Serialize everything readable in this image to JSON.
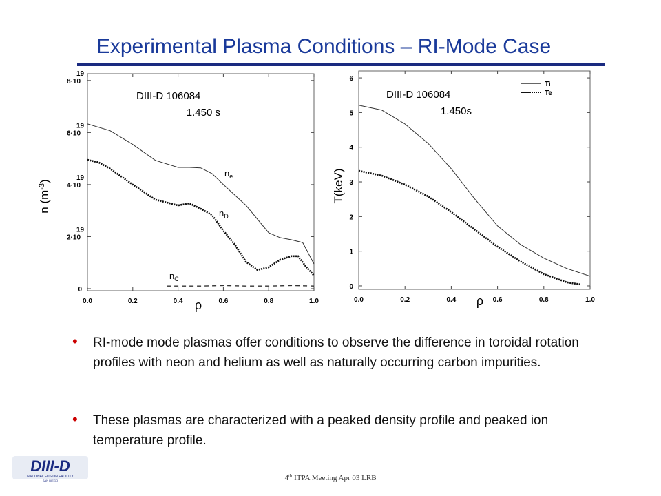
{
  "title": "Experimental Plasma Conditions – RI-Mode Case",
  "chart_data": [
    {
      "type": "line",
      "xlabel": "ρ",
      "ylabel": {
        "text": "n (m",
        "sup": "-3",
        "post": ")"
      },
      "xlim": [
        0,
        1
      ],
      "xticks": [
        {
          "value": 0,
          "label": "0.0"
        },
        0.2,
        0.4,
        0.6,
        0.8,
        {
          "value": 1,
          "label": "1.0"
        }
      ],
      "ylim": [
        -8e+17,
        8.26e+19
      ],
      "yticks": [
        0,
        {
          "value": 2e+19,
          "label": "2·10",
          "exponent": "19"
        },
        {
          "value": 4e+19,
          "label": "4·10",
          "exponent": "19"
        },
        {
          "value": 6e+19,
          "label": "6·10",
          "exponent": "19"
        },
        {
          "value": 8e+19,
          "label": "8·10",
          "exponent": "19"
        }
      ],
      "annotations": [
        {
          "text": "DIII-D  106084"
        },
        {
          "text": "1.450 s"
        },
        {
          "text": "n",
          "sub": "e"
        },
        {
          "text": "n",
          "sub": "D"
        },
        {
          "text": "n",
          "sub": "C"
        }
      ],
      "series": [
        {
          "color": "#333333",
          "style": "solid",
          "x": [
            0,
            0.1,
            0.2,
            0.3,
            0.4,
            0.45,
            0.5,
            0.55,
            0.6,
            0.7,
            0.8,
            0.85,
            0.9,
            0.95,
            1.0
          ],
          "values": [
            6.33e+19,
            6.07e+19,
            5.54e+19,
            4.93e+19,
            4.66e+19,
            4.66e+19,
            4.64e+19,
            4.42e+19,
            4e+19,
            3.2e+19,
            2.15e+19,
            1.96e+19,
            1.88e+19,
            1.77e+19,
            9.5e+18
          ]
        },
        {
          "color": "#111111",
          "style": "dotted",
          "x": [
            0,
            0.05,
            0.1,
            0.2,
            0.3,
            0.4,
            0.45,
            0.5,
            0.55,
            0.6,
            0.65,
            0.7,
            0.75,
            0.8,
            0.85,
            0.9,
            0.93,
            0.96,
            1.0
          ],
          "values": [
            4.95e+19,
            4.85e+19,
            4.61e+19,
            4e+19,
            3.42e+19,
            3.2e+19,
            3.28e+19,
            3.07e+19,
            2.83e+19,
            2.23e+19,
            1.7e+19,
            1.03e+19,
            7.2e+18,
            8.2e+18,
            1.11e+19,
            1.25e+19,
            1.25e+19,
            9e+18,
            5e+18
          ]
        },
        {
          "color": "#333333",
          "style": "dashed",
          "x": [
            0.35,
            0.5,
            0.6,
            0.7,
            0.8,
            0.9,
            1.0
          ],
          "values": [
            1e+18,
            1e+18,
            1.2e+18,
            1e+18,
            1e+18,
            1.2e+18,
            1e+18
          ]
        }
      ]
    },
    {
      "type": "line",
      "xlabel": "ρ",
      "ylabel": {
        "text": "T(keV)"
      },
      "xlim": [
        0,
        1
      ],
      "xticks": [
        {
          "value": 0,
          "label": "0.0"
        },
        0.2,
        0.4,
        0.6,
        0.8,
        {
          "value": 1,
          "label": "1.0"
        }
      ],
      "ylim": [
        -0.1,
        6.2
      ],
      "yticks": [
        0,
        1,
        2,
        3,
        4,
        5,
        6
      ],
      "legend": "upper right",
      "annotations": [
        {
          "text": "DIII-D  106084"
        },
        {
          "text": "1.450s"
        }
      ],
      "series": [
        {
          "name": "Ti",
          "color": "#333333",
          "style": "solid",
          "x": [
            0,
            0.1,
            0.2,
            0.3,
            0.4,
            0.5,
            0.6,
            0.7,
            0.8,
            0.9,
            1.0
          ],
          "values": [
            5.21,
            5.07,
            4.67,
            4.11,
            3.38,
            2.52,
            1.73,
            1.19,
            0.8,
            0.5,
            0.28
          ]
        },
        {
          "name": "Te",
          "color": "#111111",
          "style": "dotted",
          "x": [
            0,
            0.1,
            0.2,
            0.3,
            0.4,
            0.5,
            0.6,
            0.7,
            0.8,
            0.9,
            0.96
          ],
          "values": [
            3.32,
            3.18,
            2.92,
            2.58,
            2.13,
            1.63,
            1.13,
            0.7,
            0.34,
            0.1,
            0.04
          ]
        }
      ]
    }
  ],
  "bullets": [
    "RI-mode mode plasmas offer conditions to observe the difference in toroidal rotation profiles with neon and helium as well as naturally occurring carbon impurities.",
    "These plasmas are characterized with a peaked density profile and peaked ion temperature profile."
  ],
  "logo": {
    "name": "DIII-D",
    "line1": "NATIONAL FUSION FACILITY",
    "line2": "SAN DIEGO"
  },
  "footer": {
    "pre": "4",
    "sup": "th",
    "post": " ITPA Meeting  Apr 03  LRB"
  }
}
